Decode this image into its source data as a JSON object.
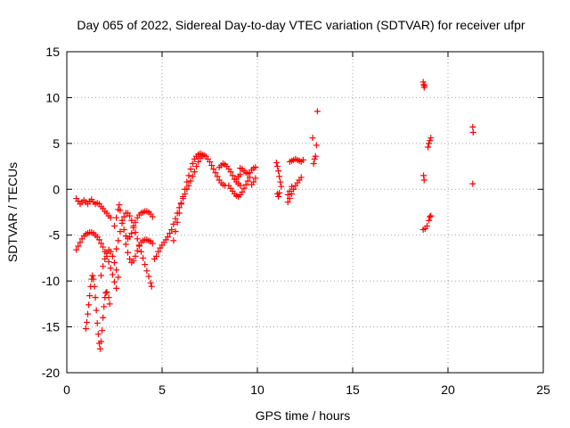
{
  "chart_data": {
    "type": "scatter",
    "title": "Day 065 of 2022, Sidereal Day-to-day VTEC variation (SDTVAR) for receiver ufpr",
    "xlabel": "GPS time / hours",
    "ylabel": "SDTVAR / TECUs",
    "xlim": [
      0,
      25
    ],
    "ylim": [
      -20,
      15
    ],
    "xticks": [
      "0",
      "5",
      "10",
      "15",
      "20",
      "25"
    ],
    "yticks": [
      "-20",
      "-15",
      "-10",
      "-5",
      "0",
      "5",
      "10",
      "15"
    ],
    "grid": true,
    "marker": "+",
    "color": "#ff0000",
    "series": [
      {
        "points": [
          [
            0.5,
            -1.0
          ],
          [
            0.6,
            -1.3
          ],
          [
            0.7,
            -1.6
          ],
          [
            0.8,
            -1.4
          ],
          [
            0.9,
            -1.2
          ],
          [
            1.0,
            -1.4
          ],
          [
            1.1,
            -1.6
          ],
          [
            1.2,
            -1.3
          ],
          [
            1.3,
            -1.1
          ],
          [
            1.4,
            -1.4
          ],
          [
            1.5,
            -1.6
          ],
          [
            1.6,
            -1.5
          ],
          [
            1.7,
            -1.6
          ],
          [
            1.8,
            -1.9
          ],
          [
            1.9,
            -2.1
          ],
          [
            2.0,
            -2.4
          ],
          [
            2.1,
            -2.6
          ],
          [
            2.2,
            -2.9
          ],
          [
            2.3,
            -3.1
          ],
          [
            0.5,
            -6.6
          ],
          [
            0.6,
            -6.2
          ],
          [
            0.7,
            -5.8
          ],
          [
            0.8,
            -5.4
          ],
          [
            0.9,
            -5.1
          ],
          [
            1.0,
            -4.9
          ],
          [
            1.1,
            -4.8
          ],
          [
            1.2,
            -4.7
          ],
          [
            1.3,
            -4.7
          ],
          [
            1.4,
            -4.8
          ],
          [
            1.5,
            -5.0
          ],
          [
            1.6,
            -5.2
          ],
          [
            1.7,
            -5.5
          ],
          [
            1.8,
            -5.9
          ],
          [
            1.9,
            -6.3
          ],
          [
            2.0,
            -6.8
          ],
          [
            2.1,
            -7.3
          ],
          [
            2.2,
            -7.9
          ],
          [
            2.3,
            -8.6
          ],
          [
            2.4,
            -9.3
          ],
          [
            2.5,
            -10.1
          ],
          [
            2.6,
            -10.8
          ],
          [
            1.0,
            -15.2
          ],
          [
            1.05,
            -14.5
          ],
          [
            1.1,
            -13.6
          ],
          [
            1.15,
            -12.6
          ],
          [
            1.2,
            -11.6
          ],
          [
            1.25,
            -10.6
          ],
          [
            1.3,
            -9.8
          ],
          [
            1.35,
            -9.4
          ],
          [
            1.4,
            -9.8
          ],
          [
            1.45,
            -10.6
          ],
          [
            1.5,
            -11.8
          ],
          [
            1.55,
            -13.2
          ],
          [
            1.6,
            -14.6
          ],
          [
            1.65,
            -15.8
          ],
          [
            1.7,
            -16.8
          ],
          [
            1.75,
            -17.4
          ],
          [
            1.8,
            -16.6
          ],
          [
            1.85,
            -15.4
          ],
          [
            1.9,
            -14.0
          ],
          [
            1.95,
            -12.8
          ],
          [
            2.0,
            -11.8
          ],
          [
            2.05,
            -11.3
          ],
          [
            2.1,
            -11.2
          ],
          [
            2.2,
            -11.8
          ],
          [
            2.25,
            -12.5
          ],
          [
            1.8,
            -9.4
          ],
          [
            1.9,
            -8.4
          ],
          [
            2.0,
            -7.6
          ],
          [
            2.1,
            -7.0
          ],
          [
            2.2,
            -6.6
          ],
          [
            2.3,
            -6.8
          ],
          [
            2.4,
            -7.3
          ],
          [
            2.5,
            -8.0
          ],
          [
            2.6,
            -8.8
          ],
          [
            2.7,
            -9.6
          ],
          [
            2.6,
            -6.5
          ],
          [
            2.7,
            -5.6
          ],
          [
            2.8,
            -4.6
          ],
          [
            2.9,
            -3.7
          ],
          [
            3.0,
            -3.0
          ],
          [
            3.1,
            -2.6
          ],
          [
            3.2,
            -2.6
          ],
          [
            3.3,
            -2.9
          ],
          [
            3.4,
            -3.4
          ],
          [
            3.5,
            -4.0
          ],
          [
            3.6,
            -4.7
          ],
          [
            3.7,
            -5.4
          ],
          [
            3.8,
            -6.1
          ],
          [
            3.9,
            -6.8
          ],
          [
            4.0,
            -7.5
          ],
          [
            4.1,
            -8.2
          ],
          [
            4.2,
            -8.9
          ],
          [
            4.3,
            -9.5
          ],
          [
            4.4,
            -10.2
          ],
          [
            4.45,
            -10.6
          ],
          [
            2.5,
            -4.0
          ],
          [
            2.6,
            -3.1
          ],
          [
            2.7,
            -2.2
          ],
          [
            2.75,
            -1.7
          ],
          [
            2.8,
            -2.3
          ],
          [
            2.9,
            -3.4
          ],
          [
            3.0,
            -4.4
          ],
          [
            3.1,
            -5.1
          ],
          [
            3.2,
            -5.4
          ],
          [
            3.3,
            -5.2
          ],
          [
            3.4,
            -4.8
          ],
          [
            3.5,
            -4.2
          ],
          [
            3.6,
            -3.6
          ],
          [
            3.7,
            -3.1
          ],
          [
            3.8,
            -2.8
          ],
          [
            3.9,
            -2.6
          ],
          [
            4.0,
            -2.5
          ],
          [
            4.1,
            -2.4
          ],
          [
            4.2,
            -2.4
          ],
          [
            4.3,
            -2.5
          ],
          [
            4.4,
            -2.7
          ],
          [
            4.5,
            -3.0
          ],
          [
            3.1,
            -6.0
          ],
          [
            3.2,
            -6.9
          ],
          [
            3.3,
            -7.6
          ],
          [
            3.4,
            -8.0
          ],
          [
            3.5,
            -7.8
          ],
          [
            3.6,
            -7.3
          ],
          [
            3.7,
            -6.7
          ],
          [
            3.8,
            -6.2
          ],
          [
            3.9,
            -5.8
          ],
          [
            4.0,
            -5.6
          ],
          [
            4.1,
            -5.5
          ],
          [
            4.2,
            -5.5
          ],
          [
            4.3,
            -5.6
          ],
          [
            4.4,
            -5.7
          ],
          [
            4.5,
            -5.9
          ],
          [
            4.6,
            -7.6
          ],
          [
            4.7,
            -7.3
          ],
          [
            4.8,
            -6.8
          ],
          [
            4.9,
            -6.4
          ],
          [
            5.0,
            -6.1
          ],
          [
            5.1,
            -5.8
          ],
          [
            5.2,
            -5.5
          ],
          [
            5.3,
            -5.2
          ],
          [
            5.4,
            -4.8
          ],
          [
            5.5,
            -4.4
          ],
          [
            5.6,
            -3.8
          ],
          [
            5.7,
            -3.2
          ],
          [
            5.8,
            -2.6
          ],
          [
            5.9,
            -2.0
          ],
          [
            6.0,
            -1.5
          ],
          [
            6.1,
            -1.0
          ],
          [
            6.2,
            -0.5
          ],
          [
            6.3,
            0.0
          ],
          [
            6.4,
            0.4
          ],
          [
            6.5,
            0.9
          ],
          [
            6.6,
            1.4
          ],
          [
            6.7,
            1.9
          ],
          [
            6.8,
            2.5
          ],
          [
            6.9,
            3.0
          ],
          [
            7.0,
            3.4
          ],
          [
            7.1,
            3.6
          ],
          [
            7.2,
            3.7
          ],
          [
            7.3,
            3.6
          ],
          [
            7.4,
            3.3
          ],
          [
            7.5,
            3.0
          ],
          [
            7.6,
            2.6
          ],
          [
            7.7,
            2.2
          ],
          [
            7.8,
            1.8
          ],
          [
            7.9,
            1.4
          ],
          [
            8.0,
            1.0
          ],
          [
            8.1,
            0.7
          ],
          [
            8.2,
            0.5
          ],
          [
            8.3,
            0.4
          ],
          [
            5.6,
            -5.6
          ],
          [
            5.7,
            -4.6
          ],
          [
            5.8,
            -3.6
          ],
          [
            5.9,
            -2.6
          ],
          [
            6.0,
            -1.6
          ],
          [
            6.1,
            -0.8
          ],
          [
            6.2,
            0.0
          ],
          [
            6.3,
            0.8
          ],
          [
            6.4,
            1.5
          ],
          [
            6.5,
            2.2
          ],
          [
            6.6,
            2.8
          ],
          [
            6.7,
            3.3
          ],
          [
            6.8,
            3.6
          ],
          [
            6.9,
            3.8
          ],
          [
            7.0,
            3.9
          ],
          [
            7.1,
            3.8
          ],
          [
            8.0,
            2.4
          ],
          [
            8.1,
            2.6
          ],
          [
            8.2,
            2.8
          ],
          [
            8.3,
            2.7
          ],
          [
            8.4,
            2.5
          ],
          [
            8.5,
            2.2
          ],
          [
            8.6,
            1.9
          ],
          [
            8.7,
            1.5
          ],
          [
            8.8,
            1.1
          ],
          [
            8.9,
            0.8
          ],
          [
            9.0,
            0.6
          ],
          [
            9.1,
            0.4
          ],
          [
            8.5,
            0.4
          ],
          [
            8.6,
            0.1
          ],
          [
            8.7,
            -0.2
          ],
          [
            8.8,
            -0.5
          ],
          [
            8.9,
            -0.7
          ],
          [
            9.0,
            -0.8
          ],
          [
            9.1,
            -0.6
          ],
          [
            9.2,
            -0.3
          ],
          [
            9.3,
            0.1
          ],
          [
            9.4,
            0.5
          ],
          [
            9.5,
            0.9
          ],
          [
            9.6,
            1.3
          ],
          [
            9.1,
            2.3
          ],
          [
            9.2,
            2.2
          ],
          [
            9.3,
            2.0
          ],
          [
            9.4,
            1.8
          ],
          [
            9.5,
            1.7
          ],
          [
            9.6,
            1.8
          ],
          [
            9.7,
            2.1
          ],
          [
            9.8,
            2.3
          ],
          [
            9.9,
            2.4
          ],
          [
            8.9,
            1.1
          ],
          [
            9.0,
            1.4
          ],
          [
            9.1,
            1.6
          ],
          [
            9.7,
            0.5
          ],
          [
            9.8,
            0.8
          ],
          [
            9.9,
            1.2
          ],
          [
            11.0,
            2.9
          ],
          [
            11.05,
            2.5
          ],
          [
            11.1,
            2.0
          ],
          [
            11.15,
            1.4
          ],
          [
            11.2,
            0.8
          ],
          [
            11.25,
            0.3
          ],
          [
            11.05,
            -0.5
          ],
          [
            11.1,
            -0.8
          ],
          [
            11.15,
            -0.4
          ],
          [
            11.6,
            -1.4
          ],
          [
            11.7,
            -1.0
          ],
          [
            11.8,
            -0.5
          ],
          [
            11.9,
            0.0
          ],
          [
            12.0,
            0.4
          ],
          [
            12.1,
            0.7
          ],
          [
            12.2,
            1.0
          ],
          [
            12.3,
            1.3
          ],
          [
            11.7,
            3.0
          ],
          [
            11.8,
            3.1
          ],
          [
            11.9,
            3.2
          ],
          [
            12.0,
            3.3
          ],
          [
            12.1,
            3.2
          ],
          [
            12.2,
            3.1
          ],
          [
            12.3,
            3.0
          ],
          [
            12.4,
            3.2
          ],
          [
            11.6,
            -0.6
          ],
          [
            11.7,
            -0.2
          ],
          [
            11.8,
            0.3
          ],
          [
            12.9,
            5.6
          ],
          [
            12.95,
            2.8
          ],
          [
            13.0,
            3.3
          ],
          [
            13.05,
            3.6
          ],
          [
            13.1,
            4.8
          ],
          [
            13.15,
            8.5
          ],
          [
            18.7,
            11.7
          ],
          [
            18.72,
            11.4
          ],
          [
            18.75,
            11.1
          ],
          [
            18.78,
            11.3
          ],
          [
            18.72,
            1.5
          ],
          [
            18.75,
            1.0
          ],
          [
            18.7,
            -4.4
          ],
          [
            18.8,
            -4.3
          ],
          [
            18.9,
            -4.0
          ],
          [
            19.0,
            -3.4
          ],
          [
            19.05,
            -3.0
          ],
          [
            19.1,
            -2.9
          ],
          [
            18.95,
            4.6
          ],
          [
            19.0,
            5.0
          ],
          [
            19.05,
            5.3
          ],
          [
            19.1,
            5.6
          ],
          [
            21.3,
            6.8
          ],
          [
            21.32,
            6.2
          ],
          [
            21.3,
            0.6
          ]
        ]
      }
    ]
  }
}
